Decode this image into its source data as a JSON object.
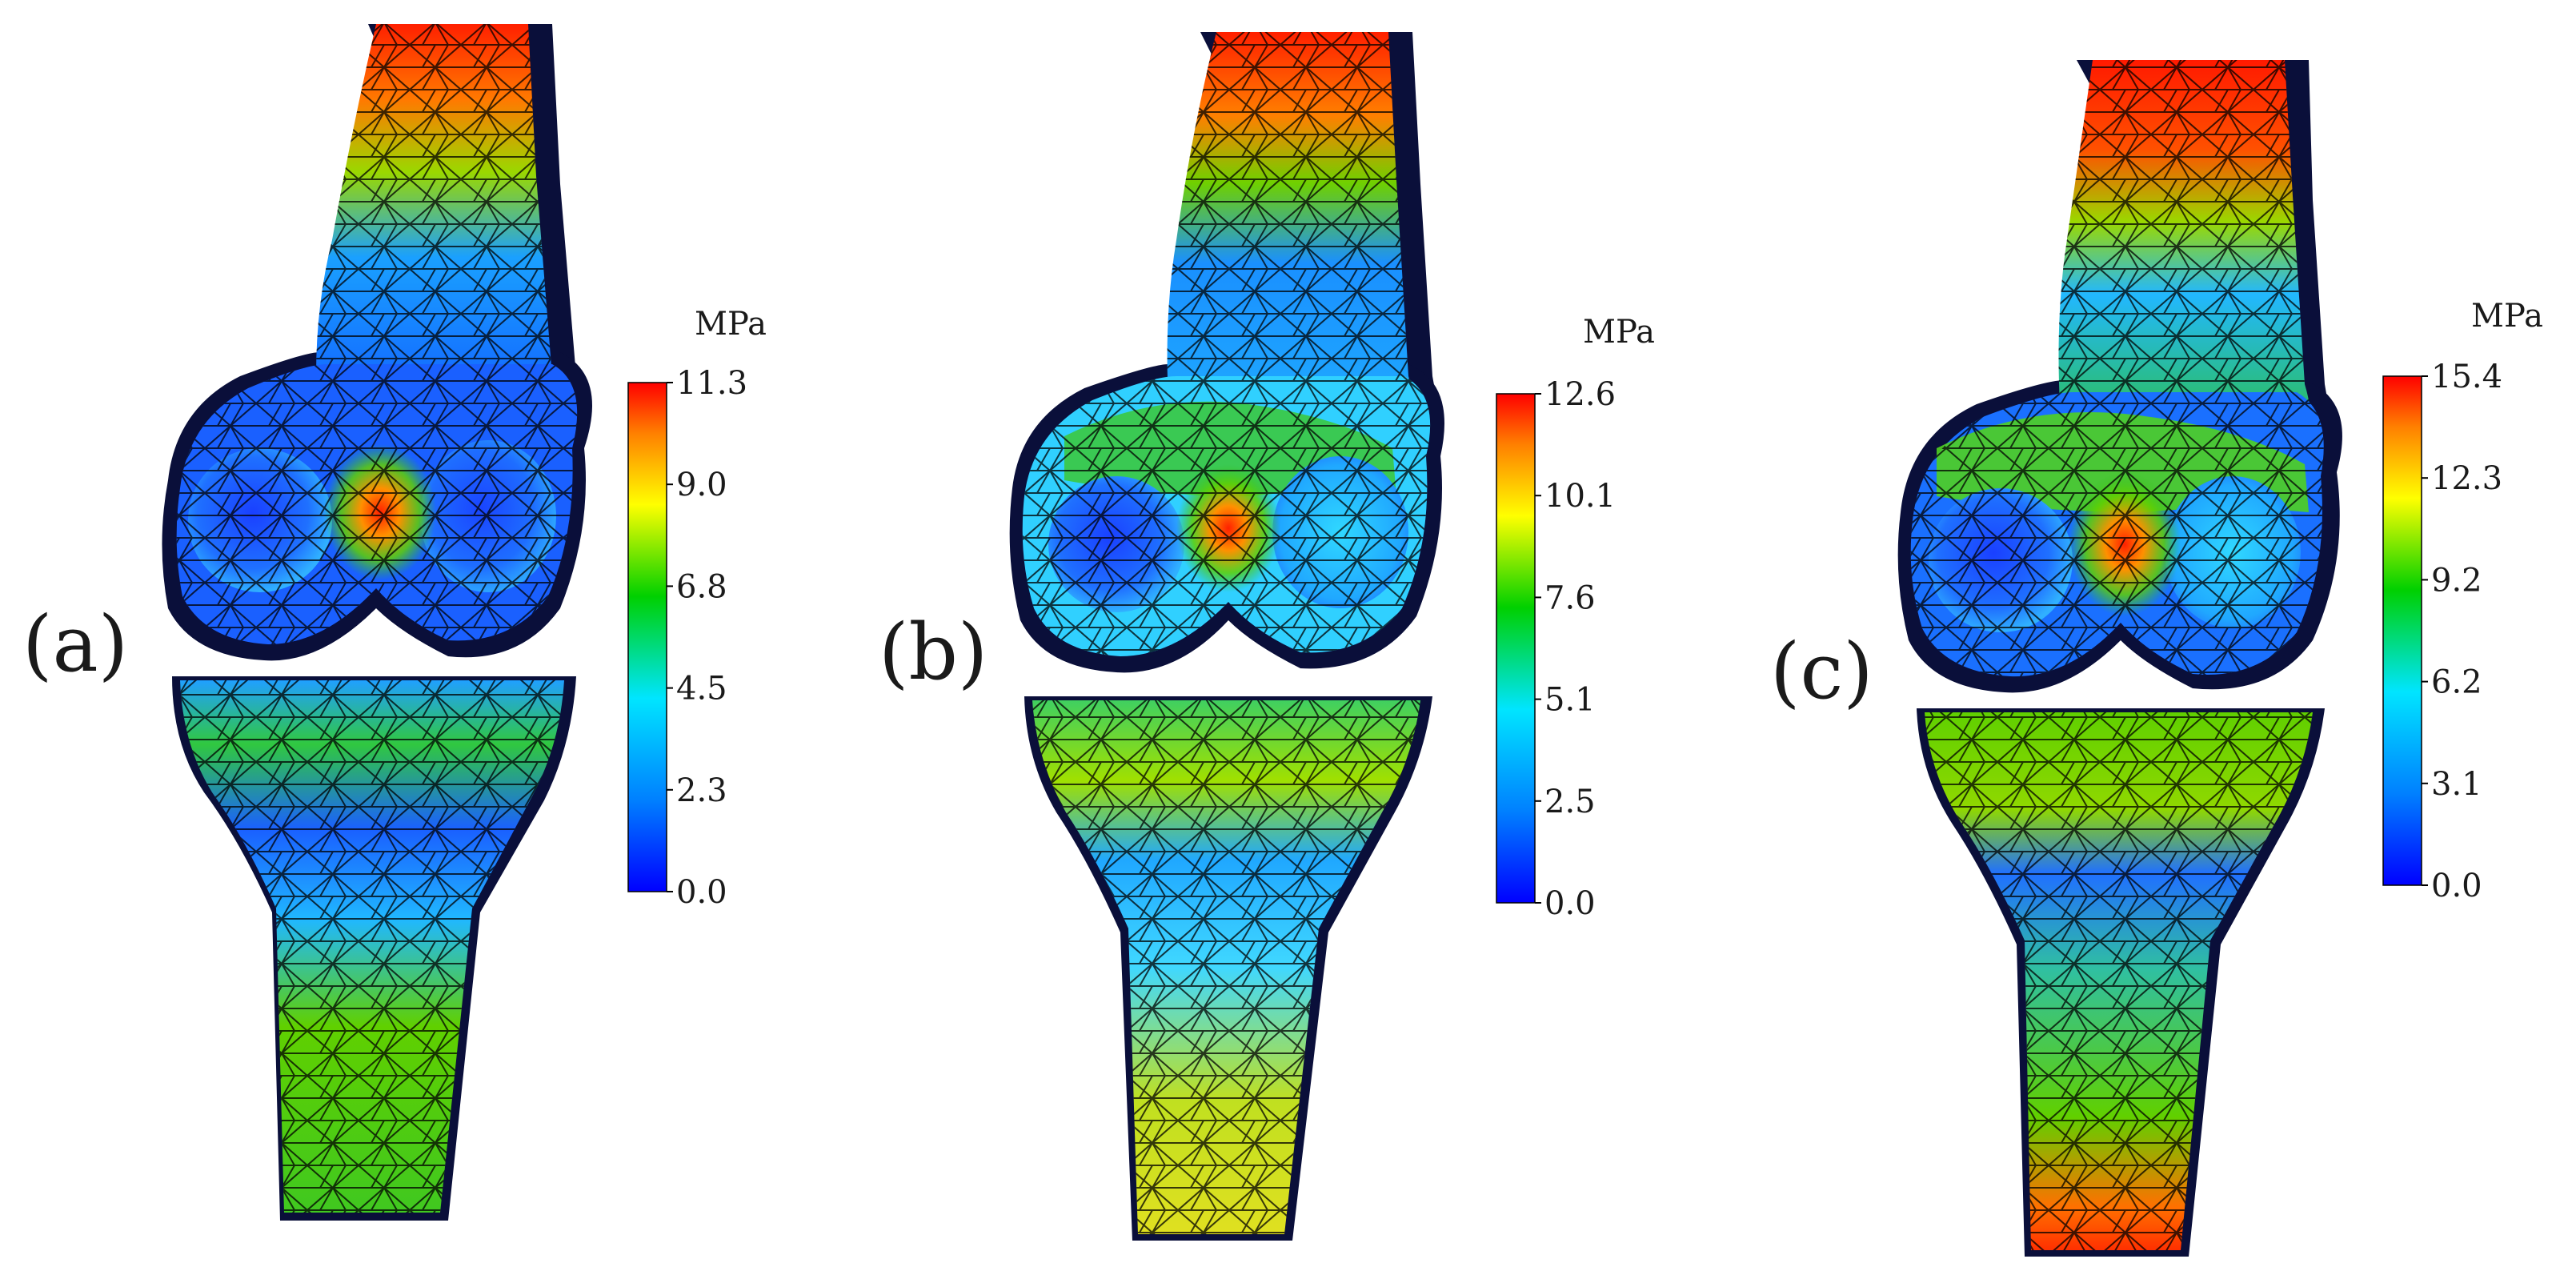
{
  "colors": {
    "scale": [
      "#0000ff",
      "#0080ff",
      "#00e5ff",
      "#00d000",
      "#ffff00",
      "#ff8000",
      "#ff0000"
    ],
    "outline": "#0a0f3a",
    "mesh": "#000000"
  },
  "panels": [
    {
      "label": "(a)",
      "unit": "MPa",
      "max": 11.3,
      "ticks": [
        "11.3",
        "9.0",
        "6.8",
        "4.5",
        "2.3",
        "0.0"
      ]
    },
    {
      "label": "(b)",
      "unit": "MPa",
      "max": 12.6,
      "ticks": [
        "12.6",
        "10.1",
        "7.6",
        "5.1",
        "2.5",
        "0.0"
      ]
    },
    {
      "label": "(c)",
      "unit": "MPa",
      "max": 15.4,
      "ticks": [
        "15.4",
        "12.3",
        "9.2",
        "6.2",
        "3.1",
        "0.0"
      ]
    }
  ]
}
